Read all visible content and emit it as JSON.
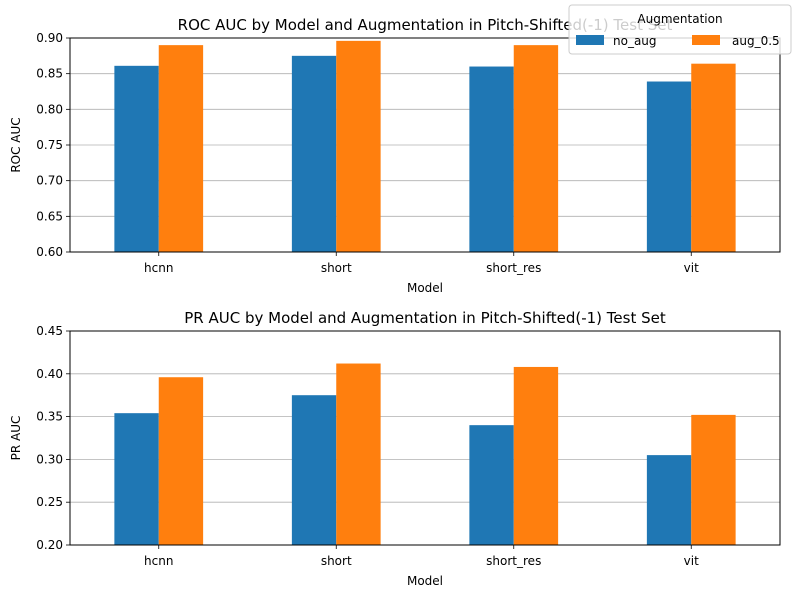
{
  "legend": {
    "title": "Augmentation",
    "entries": [
      {
        "label": "no_aug",
        "color": "#1f77b4"
      },
      {
        "label": "aug_0.5",
        "color": "#ff7f0e"
      }
    ]
  },
  "chart_data": [
    {
      "type": "bar",
      "title": "ROC AUC by Model and Augmentation in Pitch-Shifted(-1) Test Set",
      "xlabel": "Model",
      "ylabel": "ROC AUC",
      "categories": [
        "hcnn",
        "short",
        "short_res",
        "vit"
      ],
      "ylim": [
        0.6,
        0.9
      ],
      "yticks": [
        "0.60",
        "0.65",
        "0.70",
        "0.75",
        "0.80",
        "0.85",
        "0.90"
      ],
      "grid": "y",
      "series": [
        {
          "name": "no_aug",
          "color": "#1f77b4",
          "values": [
            0.861,
            0.875,
            0.86,
            0.839
          ]
        },
        {
          "name": "aug_0.5",
          "color": "#ff7f0e",
          "values": [
            0.89,
            0.896,
            0.89,
            0.864
          ]
        }
      ]
    },
    {
      "type": "bar",
      "title": "PR AUC by Model and Augmentation in Pitch-Shifted(-1) Test Set",
      "xlabel": "Model",
      "ylabel": "PR AUC",
      "categories": [
        "hcnn",
        "short",
        "short_res",
        "vit"
      ],
      "ylim": [
        0.2,
        0.45
      ],
      "yticks": [
        "0.20",
        "0.25",
        "0.30",
        "0.35",
        "0.40",
        "0.45"
      ],
      "grid": "y",
      "series": [
        {
          "name": "no_aug",
          "color": "#1f77b4",
          "values": [
            0.354,
            0.375,
            0.34,
            0.305
          ]
        },
        {
          "name": "aug_0.5",
          "color": "#ff7f0e",
          "values": [
            0.396,
            0.412,
            0.408,
            0.352
          ]
        }
      ]
    }
  ]
}
